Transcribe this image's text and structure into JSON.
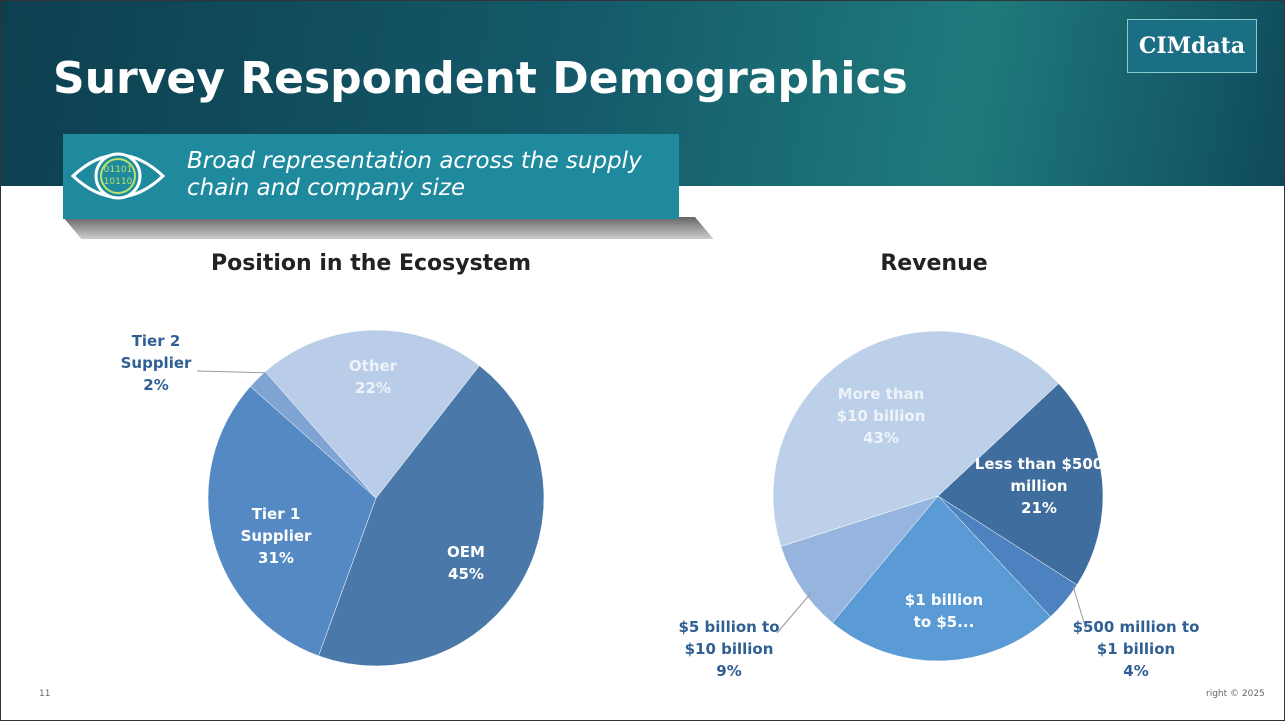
{
  "header": {
    "title": "Survey Respondent Demographics",
    "logo": "CIMdata",
    "callout": "Broad representation across the supply chain and company size"
  },
  "chart_data": [
    {
      "type": "pie",
      "title": "Position in the Ecosystem",
      "categories": [
        "OEM",
        "Tier 1 Supplier",
        "Tier 2 Supplier",
        "Other"
      ],
      "values": [
        45,
        31,
        2,
        22
      ],
      "value_labels": [
        "45%",
        "31%",
        "2%",
        "22%"
      ],
      "colors": [
        "#4a78a8",
        "#5589c4",
        "#7fa3d3",
        "#b9cde8"
      ]
    },
    {
      "type": "pie",
      "title": "Revenue",
      "categories": [
        "Less than $500 million",
        "$500 million to $1 billion",
        "$1 billion to $5...",
        "$5 billion to $10 billion",
        "More than $10 billion"
      ],
      "values": [
        21,
        4,
        23,
        9,
        43
      ],
      "value_labels": [
        "21%",
        "4%",
        null,
        "9%",
        "43%"
      ],
      "colors": [
        "#3f6d9e",
        "#4c82bf",
        "#5b9bd5",
        "#95b4de",
        "#bcd0ea"
      ]
    }
  ],
  "footer": {
    "page": "11",
    "copyright": "right © 2025"
  }
}
